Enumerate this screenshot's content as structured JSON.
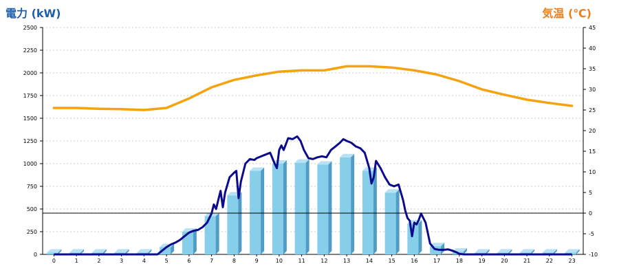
{
  "chart_data": {
    "type": "bar",
    "title_left": "電力 (kW)",
    "title_right": "気温 (℃)",
    "x_categories": [
      "0",
      "1",
      "2",
      "3",
      "4",
      "5",
      "6",
      "7",
      "8",
      "9",
      "10",
      "11",
      "12",
      "13",
      "14",
      "15",
      "16",
      "17",
      "18",
      "19",
      "20",
      "21",
      "22",
      "23"
    ],
    "y_left": {
      "ylim": [
        0,
        2500
      ],
      "ticks": [
        0,
        250,
        500,
        750,
        1000,
        1250,
        1500,
        1750,
        2000,
        2250,
        2500
      ]
    },
    "y_right": {
      "ylim": [
        -10,
        45
      ],
      "ticks": [
        -10,
        -5,
        0,
        5,
        10,
        15,
        20,
        25,
        30,
        35,
        40,
        45
      ]
    },
    "grid": true,
    "series": [
      {
        "kind": "bar",
        "axis": "left",
        "color": "#87ceeb",
        "values": [
          20,
          20,
          20,
          20,
          20,
          80,
          250,
          420,
          650,
          920,
          1000,
          1010,
          990,
          1070,
          920,
          680,
          340,
          90,
          30,
          20,
          20,
          20,
          20,
          20
        ]
      },
      {
        "kind": "line",
        "axis": "left",
        "color": "#0b0b8c",
        "points": [
          [
            0,
            0
          ],
          [
            1,
            0
          ],
          [
            2,
            0
          ],
          [
            3,
            0
          ],
          [
            4,
            0
          ],
          [
            4.6,
            0
          ],
          [
            4.8,
            40
          ],
          [
            5.0,
            80
          ],
          [
            5.2,
            110
          ],
          [
            5.4,
            130
          ],
          [
            5.6,
            160
          ],
          [
            5.8,
            200
          ],
          [
            6.0,
            240
          ],
          [
            6.2,
            260
          ],
          [
            6.4,
            270
          ],
          [
            6.6,
            300
          ],
          [
            6.8,
            350
          ],
          [
            7.0,
            450
          ],
          [
            7.1,
            550
          ],
          [
            7.2,
            500
          ],
          [
            7.3,
            600
          ],
          [
            7.4,
            700
          ],
          [
            7.5,
            520
          ],
          [
            7.6,
            680
          ],
          [
            7.8,
            850
          ],
          [
            8.0,
            900
          ],
          [
            8.1,
            920
          ],
          [
            8.2,
            620
          ],
          [
            8.3,
            800
          ],
          [
            8.5,
            1000
          ],
          [
            8.7,
            1050
          ],
          [
            8.9,
            1040
          ],
          [
            9.0,
            1060
          ],
          [
            9.2,
            1080
          ],
          [
            9.4,
            1100
          ],
          [
            9.6,
            1120
          ],
          [
            9.8,
            1000
          ],
          [
            9.9,
            950
          ],
          [
            10.0,
            1150
          ],
          [
            10.1,
            1200
          ],
          [
            10.2,
            1150
          ],
          [
            10.4,
            1280
          ],
          [
            10.6,
            1270
          ],
          [
            10.8,
            1300
          ],
          [
            10.95,
            1250
          ],
          [
            11.1,
            1150
          ],
          [
            11.3,
            1060
          ],
          [
            11.5,
            1050
          ],
          [
            11.7,
            1070
          ],
          [
            11.9,
            1080
          ],
          [
            12.1,
            1070
          ],
          [
            12.3,
            1150
          ],
          [
            12.5,
            1190
          ],
          [
            12.7,
            1230
          ],
          [
            12.85,
            1270
          ],
          [
            13.0,
            1250
          ],
          [
            13.2,
            1230
          ],
          [
            13.4,
            1190
          ],
          [
            13.6,
            1170
          ],
          [
            13.8,
            1120
          ],
          [
            14.0,
            950
          ],
          [
            14.1,
            780
          ],
          [
            14.2,
            850
          ],
          [
            14.3,
            1030
          ],
          [
            14.5,
            950
          ],
          [
            14.7,
            850
          ],
          [
            14.9,
            770
          ],
          [
            15.1,
            750
          ],
          [
            15.3,
            770
          ],
          [
            15.5,
            600
          ],
          [
            15.6,
            480
          ],
          [
            15.7,
            400
          ],
          [
            15.8,
            370
          ],
          [
            15.9,
            200
          ],
          [
            16.0,
            350
          ],
          [
            16.1,
            330
          ],
          [
            16.2,
            380
          ],
          [
            16.3,
            450
          ],
          [
            16.5,
            350
          ],
          [
            16.7,
            120
          ],
          [
            16.9,
            60
          ],
          [
            17.1,
            50
          ],
          [
            17.3,
            50
          ],
          [
            17.5,
            55
          ],
          [
            17.7,
            40
          ],
          [
            17.9,
            20
          ],
          [
            18.0,
            5
          ],
          [
            18.2,
            0
          ],
          [
            19,
            0
          ],
          [
            20,
            0
          ],
          [
            21,
            0
          ],
          [
            22,
            0
          ],
          [
            23,
            0
          ]
        ]
      },
      {
        "kind": "line",
        "axis": "right",
        "color": "#f5a20f",
        "x": [
          0,
          1,
          2,
          3,
          4,
          5,
          6,
          7,
          8,
          9,
          10,
          11,
          12,
          13,
          14,
          15,
          16,
          17,
          18,
          19,
          20,
          21,
          22,
          23
        ],
        "values": [
          25.5,
          25.5,
          25.3,
          25.2,
          25.0,
          25.5,
          27.8,
          30.5,
          32.3,
          33.4,
          34.3,
          34.6,
          34.6,
          35.6,
          35.6,
          35.3,
          34.6,
          33.6,
          32.0,
          30.0,
          28.7,
          27.5,
          26.7,
          26.0
        ]
      }
    ],
    "reference_line": {
      "axis": "right",
      "value": 0,
      "color": "#000000"
    }
  }
}
